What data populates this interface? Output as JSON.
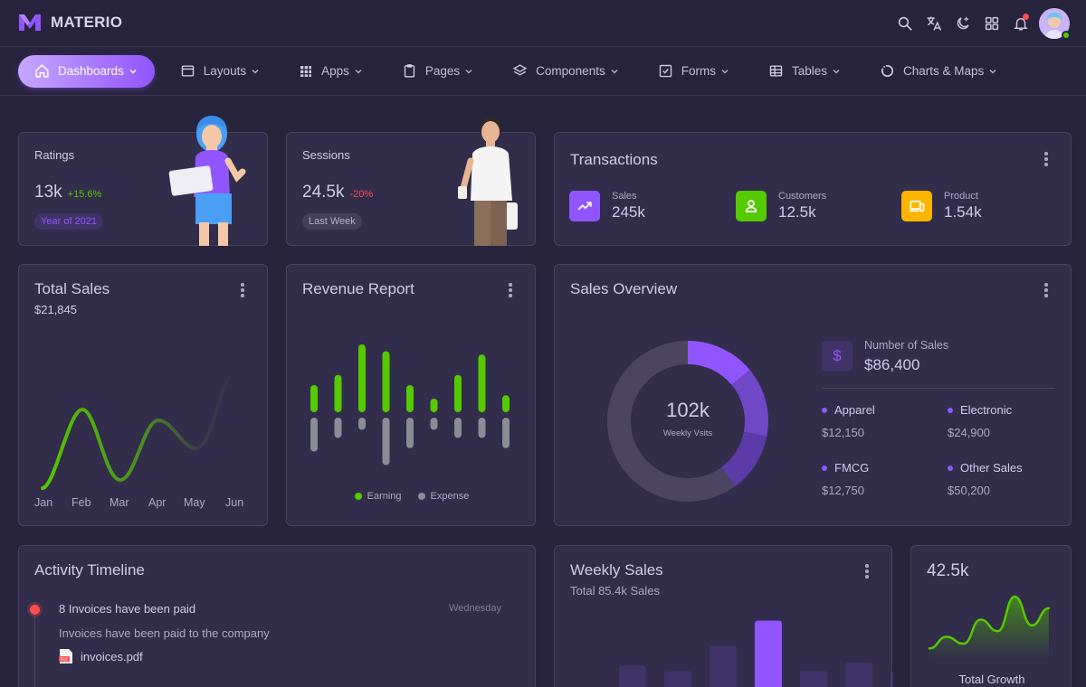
{
  "app": {
    "name": "MATERIO"
  },
  "colors": {
    "primary": "#9155fd",
    "success": "#56ca00",
    "warning": "#ffb400",
    "error": "#ff4c51",
    "secondary": "#8a8d93",
    "background": "#28243d",
    "card": "#312d4b"
  },
  "topbar": {
    "icons": [
      "search-icon",
      "translate-icon",
      "theme-moon-icon",
      "shortcuts-grid-icon",
      "bell-icon",
      "avatar"
    ]
  },
  "nav": {
    "items": [
      {
        "label": "Dashboards",
        "icon": "home-icon",
        "active": true
      },
      {
        "label": "Layouts",
        "icon": "layout-icon"
      },
      {
        "label": "Apps",
        "icon": "apps-grid-icon"
      },
      {
        "label": "Pages",
        "icon": "clipboard-icon"
      },
      {
        "label": "Components",
        "icon": "layers-icon"
      },
      {
        "label": "Forms",
        "icon": "checkbox-icon"
      },
      {
        "label": "Tables",
        "icon": "table-icon"
      },
      {
        "label": "Charts & Maps",
        "icon": "donut-chart-icon"
      }
    ]
  },
  "ratings": {
    "label": "Ratings",
    "value": "13k",
    "change": "+15.6%",
    "chip": "Year of 2021"
  },
  "sessions": {
    "label": "Sessions",
    "value": "24.5k",
    "change": "-20%",
    "chip": "Last Week"
  },
  "transactions": {
    "title": "Transactions",
    "items": [
      {
        "label": "Sales",
        "value": "245k",
        "icon": "trending-up-icon",
        "color": "#9155fd"
      },
      {
        "label": "Customers",
        "value": "12.5k",
        "icon": "user-icon",
        "color": "#56ca00"
      },
      {
        "label": "Product",
        "value": "1.54k",
        "icon": "devices-icon",
        "color": "#ffb400"
      }
    ]
  },
  "total_sales": {
    "title": "Total Sales",
    "amount": "$21,845",
    "months": [
      "Jan",
      "Feb",
      "Mar",
      "Apr",
      "May",
      "Jun"
    ]
  },
  "revenue_report": {
    "title": "Revenue Report",
    "legend": {
      "earning": "Earning",
      "expense": "Expense"
    }
  },
  "sales_overview": {
    "title": "Sales Overview",
    "center_value": "102k",
    "center_label": "Weekly Vsits",
    "number_label": "Number of Sales",
    "number_value": "$86,400",
    "items": [
      {
        "name": "Apparel",
        "value": "$12,150"
      },
      {
        "name": "Electronic",
        "value": "$24,900"
      },
      {
        "name": "FMCG",
        "value": "$12,750"
      },
      {
        "name": "Other Sales",
        "value": "$50,200"
      }
    ]
  },
  "activity": {
    "title": "Activity Timeline",
    "entries": [
      {
        "title": "8 Invoices have been paid",
        "time": "Wednesday",
        "desc": "Invoices have been paid to the company",
        "file": "invoices.pdf"
      }
    ]
  },
  "weekly_sales": {
    "title": "Weekly Sales",
    "subtitle": "Total 85.4k Sales"
  },
  "total_growth": {
    "value": "42.5k",
    "label": "Total Growth"
  },
  "chart_data": [
    {
      "type": "line",
      "title": "Total Sales",
      "categories": [
        "Jan",
        "Feb",
        "Mar",
        "Apr",
        "May",
        "Jun"
      ],
      "grid": false,
      "values": [
        0,
        38,
        5,
        32,
        25,
        50
      ]
    },
    {
      "type": "bar",
      "title": "Revenue Report",
      "grid": false,
      "series": [
        {
          "name": "Earning",
          "color": "#56ca00",
          "values": [
            40,
            55,
            100,
            90,
            40,
            20,
            55,
            85,
            25
          ]
        },
        {
          "name": "Expense",
          "color": "#8a8d93",
          "values": [
            -50,
            -30,
            -18,
            -70,
            -45,
            -18,
            -30,
            -30,
            -45
          ]
        }
      ]
    },
    {
      "type": "pie",
      "title": "Sales Overview",
      "values": [
        60,
        14,
        14,
        12
      ],
      "colors": [
        "#4b4561",
        "#9155fd",
        "#6f47c7",
        "#5b3ba8"
      ]
    },
    {
      "type": "bar",
      "title": "Weekly Sales",
      "grid": false,
      "values": [
        40,
        30,
        75,
        120,
        30,
        45,
        30
      ]
    },
    {
      "type": "area",
      "title": "Total Growth",
      "grid": false,
      "values": [
        10,
        20,
        14,
        35,
        25,
        55,
        30,
        45
      ]
    }
  ]
}
